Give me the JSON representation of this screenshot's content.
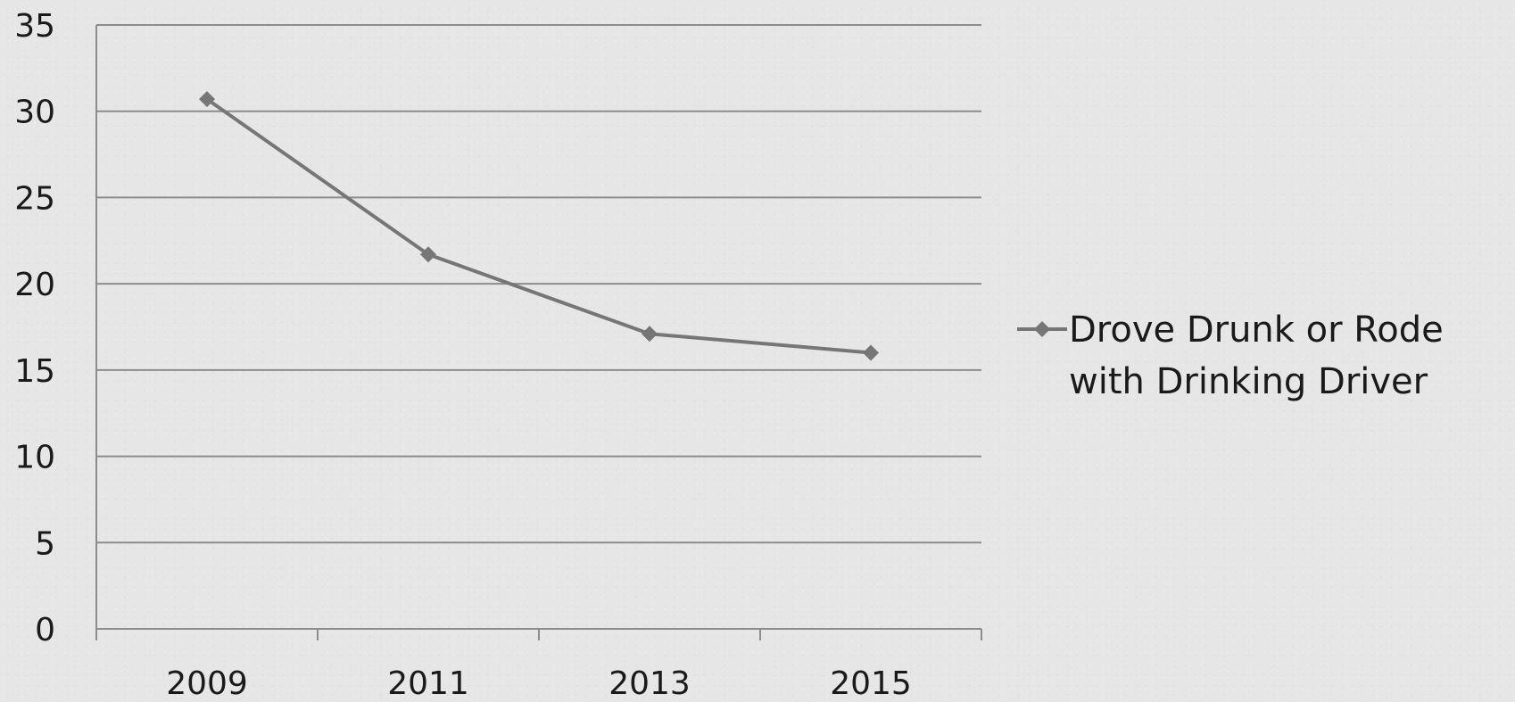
{
  "chart_data": {
    "type": "line",
    "title": "",
    "xlabel": "",
    "ylabel": "",
    "categories": [
      "2009",
      "2011",
      "2013",
      "2015"
    ],
    "series": [
      {
        "name": "Drove Drunk or Rode with Drinking Driver",
        "values": [
          30.7,
          21.7,
          17.1,
          16.0
        ],
        "color": "#767676",
        "marker": "diamond"
      }
    ],
    "ylim": [
      0,
      35
    ],
    "yticks": [
      "0",
      "5",
      "10",
      "15",
      "20",
      "25",
      "30",
      "35"
    ],
    "grid": true,
    "legend": {
      "placement": "right",
      "lines": [
        "Drove Drunk or Rode",
        "with Drinking Driver"
      ]
    },
    "colors": {
      "gridline": "#8c8c8c",
      "axis": "#8c8c8c",
      "text": "#1a1a1a"
    }
  }
}
